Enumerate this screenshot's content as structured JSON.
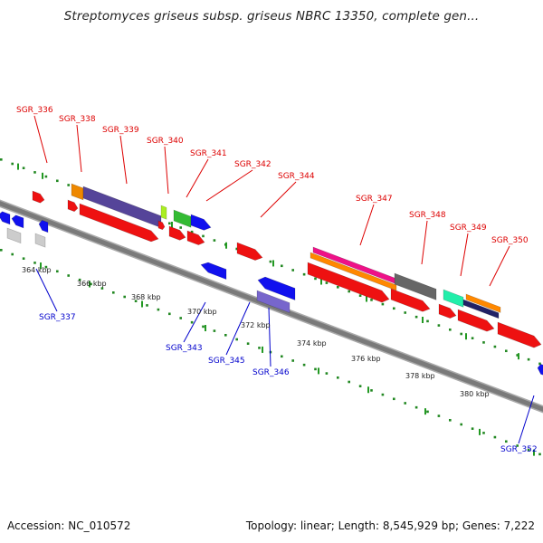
{
  "title": "Streptomyces griseus subsp. griseus NBRC 13350, complete gen...",
  "footer": {
    "accession": "Accession: NC_010572",
    "summary": "Topology: linear; Length: 8,545,929 bp; Genes: 7,222"
  },
  "colors": {
    "top_label": "#dd0000",
    "bottom_label": "#0000cc",
    "scale_dots": "#228822",
    "axis": "#777777"
  },
  "scale_labels": [
    "364 kbp",
    "366 kbp",
    "368 kbp",
    "370 kbp",
    "372 kbp",
    "374 kbp",
    "376 kbp",
    "378 kbp",
    "380 kbp"
  ],
  "top_gene_labels": [
    "SGR_336",
    "SGR_338",
    "SGR_339",
    "SGR_340",
    "SGR_341",
    "SGR_342",
    "SGR_344",
    "SGR_347",
    "SGR_348",
    "SGR_349",
    "SGR_350"
  ],
  "bottom_gene_labels": [
    "SGR_337",
    "SGR_343",
    "SGR_345",
    "SGR_346",
    "SGR_352"
  ]
}
